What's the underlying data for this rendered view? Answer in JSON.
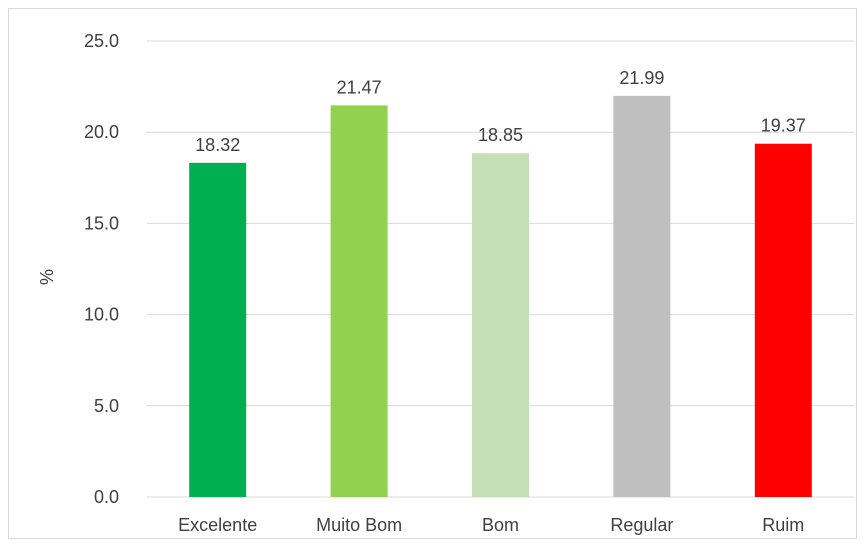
{
  "chart_data": {
    "type": "bar",
    "categories": [
      "Excelente",
      "Muito Bom",
      "Bom",
      "Regular",
      "Ruim"
    ],
    "values": [
      18.32,
      21.47,
      18.85,
      21.99,
      19.37
    ],
    "value_labels": [
      "18.32",
      "21.47",
      "18.85",
      "21.99",
      "19.37"
    ],
    "colors": [
      "#00b050",
      "#92d050",
      "#c5e0b4",
      "#bfbfbf",
      "#ff0000"
    ],
    "ylabel": "%",
    "ylim": [
      0,
      25
    ],
    "yticks": [
      "0.0",
      "5.0",
      "10.0",
      "15.0",
      "20.0",
      "25.0"
    ],
    "grid": true,
    "legend": "none"
  }
}
